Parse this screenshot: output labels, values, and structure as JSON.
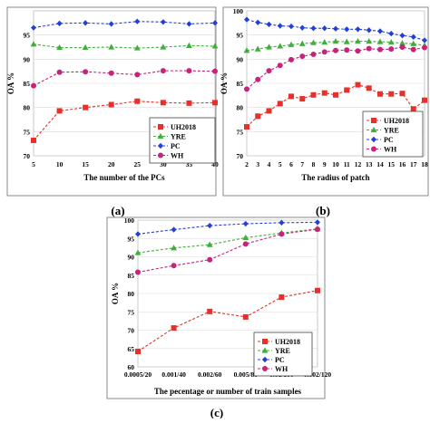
{
  "chart_data": [
    {
      "id": "a",
      "type": "line",
      "panel_label": "(a)",
      "xlabel": "The number of the PCs",
      "ylabel": "OA %",
      "x": [
        5,
        10,
        15,
        20,
        25,
        30,
        35,
        40
      ],
      "xlim": [
        5,
        40
      ],
      "ylim": [
        70,
        100
      ],
      "yticks": [
        70,
        75,
        80,
        85,
        90,
        95
      ],
      "series": [
        {
          "name": "UH2018",
          "color": "#e8302a",
          "marker": "square",
          "values": [
            73.2,
            79.3,
            80.0,
            80.6,
            81.3,
            81.0,
            80.9,
            81.0
          ]
        },
        {
          "name": "YRE",
          "color": "#3fae3a",
          "marker": "triangle",
          "values": [
            93.1,
            92.4,
            92.4,
            92.5,
            92.3,
            92.5,
            92.8,
            92.7
          ]
        },
        {
          "name": "PC",
          "color": "#2340d6",
          "marker": "diamond",
          "values": [
            96.5,
            97.4,
            97.5,
            97.3,
            97.8,
            97.7,
            97.3,
            97.5
          ]
        },
        {
          "name": "WH",
          "color": "#c8237a",
          "marker": "circle",
          "values": [
            84.5,
            87.3,
            87.4,
            87.1,
            86.8,
            87.6,
            87.6,
            87.5
          ]
        }
      ],
      "legend": "bottom-right"
    },
    {
      "id": "b",
      "type": "line",
      "panel_label": "(b)",
      "xlabel": "The radius of patch",
      "ylabel": "OA %",
      "x": [
        2,
        3,
        4,
        5,
        6,
        7,
        8,
        9,
        10,
        11,
        12,
        13,
        14,
        15,
        16,
        17,
        18
      ],
      "xlim": [
        2,
        18
      ],
      "ylim": [
        70,
        100
      ],
      "yticks": [
        70,
        75,
        80,
        85,
        90,
        95,
        100
      ],
      "series": [
        {
          "name": "UH2018",
          "color": "#e8302a",
          "marker": "square",
          "values": [
            76.0,
            78.2,
            79.3,
            80.8,
            82.3,
            81.8,
            82.6,
            83.0,
            82.6,
            83.6,
            84.7,
            84.0,
            82.8,
            82.8,
            82.9,
            79.7,
            81.5
          ]
        },
        {
          "name": "YRE",
          "color": "#3fae3a",
          "marker": "triangle",
          "values": [
            91.8,
            92.1,
            92.5,
            92.7,
            93.0,
            93.2,
            93.4,
            93.5,
            93.7,
            93.6,
            93.7,
            93.7,
            93.6,
            93.5,
            93.3,
            93.2,
            92.8
          ]
        },
        {
          "name": "PC",
          "color": "#2340d6",
          "marker": "diamond",
          "values": [
            98.2,
            97.6,
            97.2,
            96.9,
            96.8,
            96.5,
            96.4,
            96.4,
            96.3,
            96.2,
            96.2,
            96.0,
            95.8,
            95.3,
            94.9,
            94.6,
            93.9
          ]
        },
        {
          "name": "WH",
          "color": "#c8237a",
          "marker": "circle",
          "values": [
            83.8,
            85.8,
            87.6,
            88.7,
            89.9,
            90.6,
            91.0,
            91.5,
            91.8,
            91.9,
            91.7,
            92.2,
            92.0,
            92.1,
            92.5,
            92.0,
            92.4
          ]
        }
      ],
      "legend": "bottom-right"
    },
    {
      "id": "c",
      "type": "line",
      "panel_label": "(c)",
      "xlabel": "The pecentage or number of train samples",
      "ylabel": "OA %",
      "categories": [
        "0.0005/20",
        "0.001/40",
        "0.002/60",
        "0.005/80",
        "0.01/100",
        "0.002/120"
      ],
      "ylim": [
        60,
        100
      ],
      "yticks": [
        60,
        65,
        70,
        75,
        80,
        85,
        90,
        95,
        100
      ],
      "series": [
        {
          "name": "UH2018",
          "color": "#e8302a",
          "marker": "square",
          "values": [
            64.2,
            70.6,
            75.1,
            73.6,
            79.0,
            80.8
          ]
        },
        {
          "name": "YRE",
          "color": "#3fae3a",
          "marker": "triangle",
          "values": [
            91.1,
            92.4,
            93.3,
            95.2,
            96.5,
            97.6
          ]
        },
        {
          "name": "PC",
          "color": "#2340d6",
          "marker": "diamond",
          "values": [
            96.2,
            97.4,
            98.5,
            99.0,
            99.3,
            99.4
          ]
        },
        {
          "name": "WH",
          "color": "#c8237a",
          "marker": "circle",
          "values": [
            85.8,
            87.6,
            89.2,
            93.5,
            96.2,
            97.5
          ]
        }
      ],
      "legend": "bottom-right"
    }
  ]
}
